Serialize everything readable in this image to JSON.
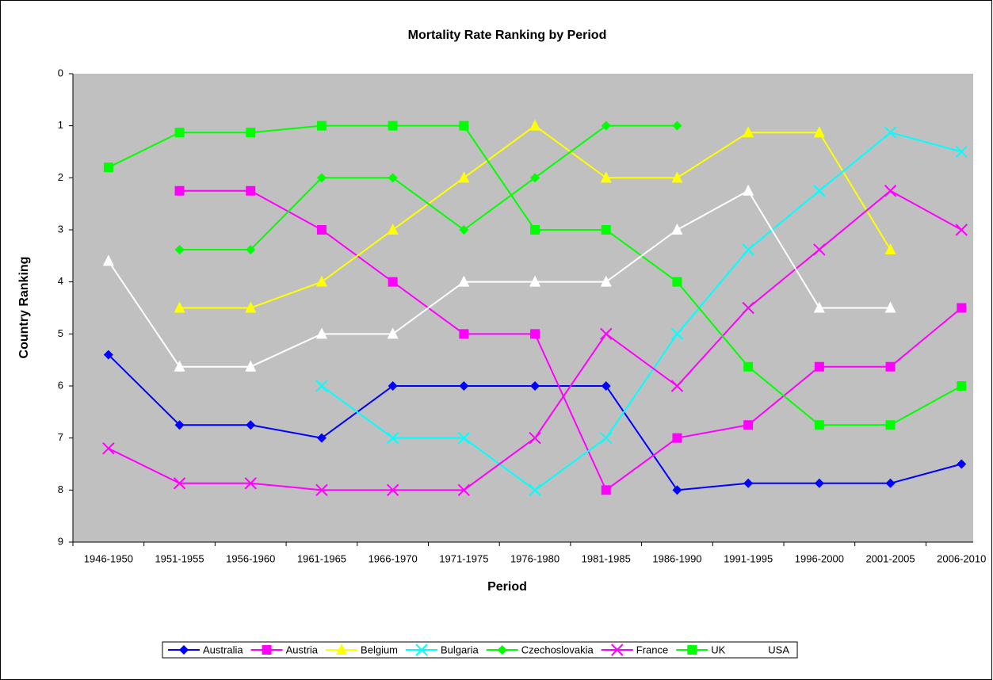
{
  "chart_data": {
    "type": "line",
    "title": "Mortality Rate Ranking by Period",
    "xlabel": "Period",
    "ylabel": "Country Ranking",
    "categories": [
      "1946-1950",
      "1951-1955",
      "1956-1960",
      "1961-1965",
      "1966-1970",
      "1971-1975",
      "1976-1980",
      "1981-1985",
      "1986-1990",
      "1991-1995",
      "1996-2000",
      "2001-2005",
      "2006-2010"
    ],
    "ylim": [
      0,
      9
    ],
    "yticks": [
      0,
      1,
      2,
      3,
      4,
      5,
      6,
      7,
      8,
      9
    ],
    "y_inverted": true,
    "legend": "bottom",
    "series": [
      {
        "name": "Australia",
        "color": "#0000ff",
        "marker": "diamond",
        "values": [
          5.4,
          6.75,
          6.75,
          7,
          6,
          6,
          6,
          6,
          8,
          7.87,
          7.87,
          7.87,
          7.5
        ]
      },
      {
        "name": "Austria",
        "color": "#ff00ff",
        "marker": "square",
        "values": [
          null,
          2.25,
          2.25,
          3,
          4,
          5,
          5,
          8,
          7,
          6.75,
          5.63,
          5.63,
          4.5
        ]
      },
      {
        "name": "Belgium",
        "color": "#ffff00",
        "marker": "triangle",
        "values": [
          null,
          4.5,
          4.5,
          4,
          3,
          2,
          1,
          2,
          2,
          1.13,
          1.13,
          3.38,
          null
        ]
      },
      {
        "name": "Bulgaria",
        "color": "#00ffff",
        "marker": "x",
        "values": [
          null,
          null,
          null,
          6,
          7,
          7,
          8,
          7,
          5,
          3.38,
          2.25,
          1.13,
          1.5
        ]
      },
      {
        "name": "Czechoslovakia",
        "color": "#00ff00",
        "marker": "diamond",
        "values": [
          null,
          3.38,
          3.38,
          2,
          2,
          3,
          2,
          1,
          1,
          null,
          null,
          null,
          null
        ]
      },
      {
        "name": "France",
        "color": "#ff00ff",
        "marker": "x",
        "values": [
          7.2,
          7.87,
          7.87,
          8,
          8,
          8,
          7,
          5,
          6,
          4.5,
          3.38,
          2.25,
          3
        ]
      },
      {
        "name": "UK",
        "color": "#00ff00",
        "marker": "square",
        "values": [
          1.8,
          1.13,
          1.13,
          1,
          1,
          1,
          3,
          3,
          4,
          5.63,
          6.75,
          6.75,
          6
        ]
      },
      {
        "name": "USA",
        "color": "#ffffff",
        "marker": "triangle",
        "values": [
          3.6,
          5.63,
          5.63,
          5,
          5,
          4,
          4,
          4,
          3,
          2.25,
          4.5,
          4.5,
          null
        ]
      }
    ]
  }
}
